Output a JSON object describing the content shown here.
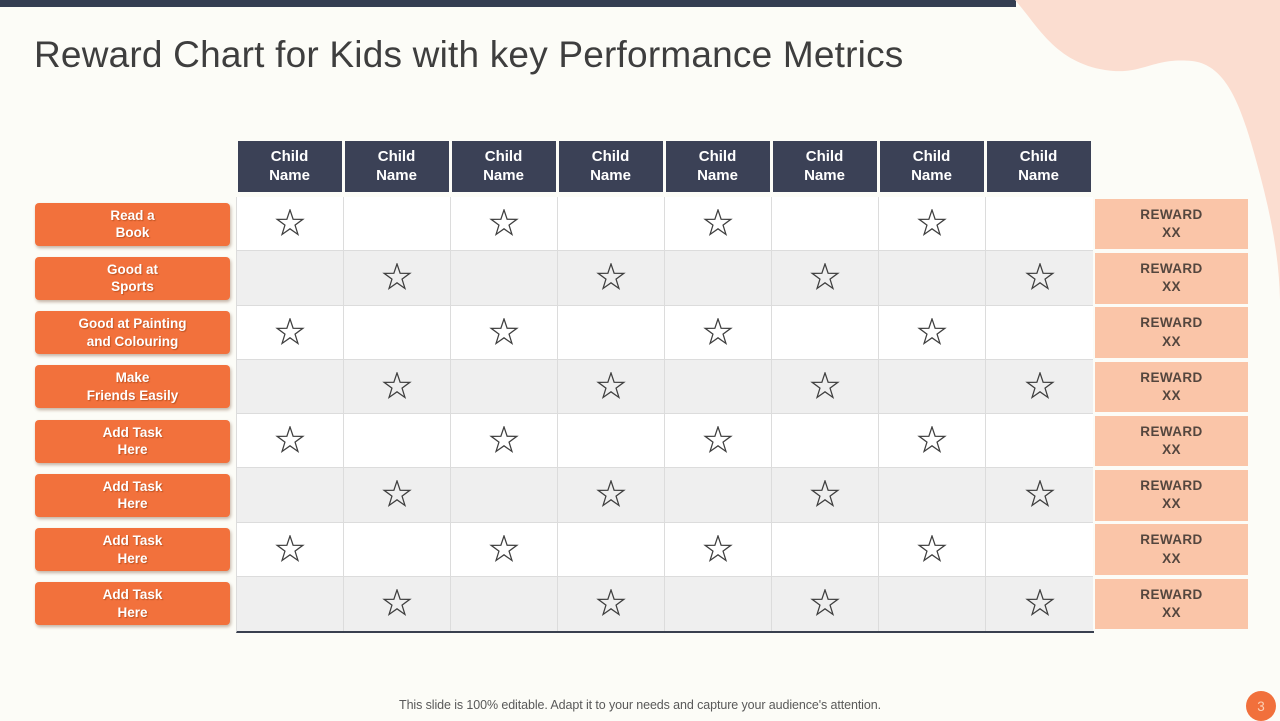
{
  "slide": {
    "title": "Reward Chart for Kids with key Performance Metrics",
    "footer_note": "This slide is 100% editable. Adapt it to your needs and capture your audience's attention.",
    "page_number": "3"
  },
  "colors": {
    "accent_orange": "#F2713C",
    "header_navy": "#3B4156",
    "top_bar_navy": "#343E52",
    "reward_peach": "#FAC5A8",
    "blob_peach": "#FBDDD0",
    "alt_row_gray": "#EFEFEF",
    "grid_line": "#DCDCDC",
    "title_text": "#3E3E3E",
    "footer_text": "#595959",
    "reward_text": "#54463E"
  },
  "icons": {
    "star": "outline-star"
  },
  "table": {
    "columns": [
      "Child\nName",
      "Child\nName",
      "Child\nName",
      "Child\nName",
      "Child\nName",
      "Child\nName",
      "Child\nName",
      "Child\nName"
    ],
    "rows": [
      {
        "task": "Read a\nBook",
        "stars": [
          1,
          0,
          1,
          0,
          1,
          0,
          1,
          0
        ],
        "reward": "REWARD\nXX"
      },
      {
        "task": "Good at\nSports",
        "stars": [
          0,
          1,
          0,
          1,
          0,
          1,
          0,
          1
        ],
        "reward": "REWARD\nXX"
      },
      {
        "task": "Good at Painting\nand Colouring",
        "stars": [
          1,
          0,
          1,
          0,
          1,
          0,
          1,
          0
        ],
        "reward": "REWARD\nXX"
      },
      {
        "task": "Make\nFriends Easily",
        "stars": [
          0,
          1,
          0,
          1,
          0,
          1,
          0,
          1
        ],
        "reward": "REWARD\nXX"
      },
      {
        "task": "Add Task\nHere",
        "stars": [
          1,
          0,
          1,
          0,
          1,
          0,
          1,
          0
        ],
        "reward": "REWARD\nXX"
      },
      {
        "task": "Add Task\nHere",
        "stars": [
          0,
          1,
          0,
          1,
          0,
          1,
          0,
          1
        ],
        "reward": "REWARD\nXX"
      },
      {
        "task": "Add Task\nHere",
        "stars": [
          1,
          0,
          1,
          0,
          1,
          0,
          1,
          0
        ],
        "reward": "REWARD\nXX"
      },
      {
        "task": "Add Task\nHere",
        "stars": [
          0,
          1,
          0,
          1,
          0,
          1,
          0,
          1
        ],
        "reward": "REWARD\nXX"
      }
    ]
  }
}
